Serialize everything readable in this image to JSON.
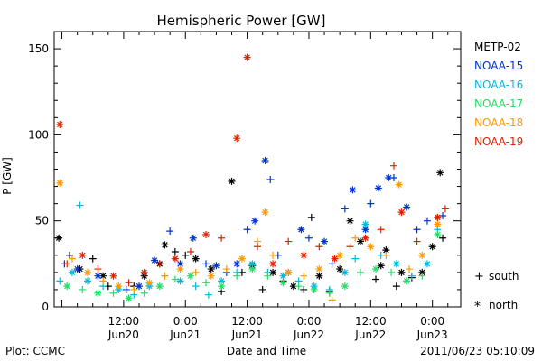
{
  "footer": {
    "plot_credit": "Plot: CCMC",
    "timestamp": "2011/06/23 05:10:09"
  },
  "legend_markers": {
    "south_symbol": "+",
    "south_label": "south",
    "north_symbol": "*",
    "north_label": "north"
  },
  "chart_data": {
    "type": "scatter",
    "title": "Hemispheric Power [GW]",
    "xlabel": "Date and Time",
    "ylabel": "P [GW]",
    "ylim": [
      0,
      160
    ],
    "xlim_hours": [
      0,
      59.5
    ],
    "y_ticks": [
      0,
      50,
      100,
      150
    ],
    "x_ticks": [
      {
        "h": 12,
        "label1": "12:00",
        "label2": "Jun20"
      },
      {
        "h": 24,
        "label1": "0:00",
        "label2": "Jun21"
      },
      {
        "h": 36,
        "label1": "12:00",
        "label2": "Jun21"
      },
      {
        "h": 48,
        "label1": "0:00",
        "label2": "Jun22"
      },
      {
        "h": 60,
        "label1": "12:00",
        "label2": "Jun22"
      },
      {
        "h": 72,
        "label1": "0:00",
        "label2": "Jun23"
      }
    ],
    "grid": false,
    "legend_position": "right",
    "series": [
      {
        "name": "METP-02",
        "color": "#000000",
        "points": [
          [
            -0.6,
            40,
            "n"
          ],
          [
            1.5,
            30,
            "s"
          ],
          [
            3.5,
            22,
            "n"
          ],
          [
            6,
            28,
            "s"
          ],
          [
            8,
            18,
            "n"
          ],
          [
            9,
            12,
            "s"
          ],
          [
            14,
            12,
            "s"
          ],
          [
            16,
            18,
            "n"
          ],
          [
            19,
            25,
            "n"
          ],
          [
            20,
            36,
            "n"
          ],
          [
            22,
            32,
            "s"
          ],
          [
            24,
            30,
            "s"
          ],
          [
            26,
            28,
            "n"
          ],
          [
            29,
            22,
            "n"
          ],
          [
            31,
            9,
            "s"
          ],
          [
            33,
            73,
            "n"
          ],
          [
            35,
            20,
            "s"
          ],
          [
            37,
            24,
            "n"
          ],
          [
            39,
            10,
            "s"
          ],
          [
            41,
            20,
            "n"
          ],
          [
            43,
            15,
            "s"
          ],
          [
            45,
            12,
            "n"
          ],
          [
            47,
            10,
            "s"
          ],
          [
            48.5,
            52,
            "s"
          ],
          [
            50,
            18,
            "n"
          ],
          [
            52,
            9,
            "s"
          ],
          [
            54,
            22,
            "n"
          ],
          [
            56,
            50,
            "n"
          ],
          [
            58,
            38,
            "n"
          ],
          [
            61,
            16,
            "s"
          ],
          [
            62,
            24,
            "n"
          ],
          [
            63,
            33,
            "n"
          ],
          [
            65,
            12,
            "s"
          ],
          [
            66,
            20,
            "n"
          ],
          [
            68,
            17,
            "s"
          ],
          [
            70,
            20,
            "n"
          ],
          [
            72,
            35,
            "n"
          ],
          [
            73.5,
            78,
            "n"
          ],
          [
            74,
            40,
            "s"
          ]
        ]
      },
      {
        "name": "NOAA-15",
        "color": "#0033cc",
        "points": [
          [
            0.5,
            25,
            "s"
          ],
          [
            3,
            22,
            "n"
          ],
          [
            7,
            18,
            "n"
          ],
          [
            12.5,
            10,
            "s"
          ],
          [
            15,
            12,
            "n"
          ],
          [
            18,
            27,
            "n"
          ],
          [
            21,
            44,
            "s"
          ],
          [
            23,
            25,
            "n"
          ],
          [
            25.5,
            40,
            "n"
          ],
          [
            28,
            25,
            "s"
          ],
          [
            30,
            24,
            "n"
          ],
          [
            32,
            20,
            "s"
          ],
          [
            34,
            25,
            "n"
          ],
          [
            36,
            45,
            "s"
          ],
          [
            37.5,
            50,
            "n"
          ],
          [
            39.5,
            85,
            "n"
          ],
          [
            40.5,
            74,
            "s"
          ],
          [
            42,
            30,
            "s"
          ],
          [
            44,
            20,
            "n"
          ],
          [
            46.5,
            45,
            "n"
          ],
          [
            48,
            40,
            "s"
          ],
          [
            51,
            38,
            "n"
          ],
          [
            52.5,
            25,
            "s"
          ],
          [
            55,
            57,
            "s"
          ],
          [
            56.5,
            68,
            "n"
          ],
          [
            59,
            45,
            "n"
          ],
          [
            60,
            60,
            "s"
          ],
          [
            61.5,
            69,
            "n"
          ],
          [
            63.5,
            75,
            "n"
          ],
          [
            64.5,
            75,
            "s"
          ],
          [
            67,
            58,
            "n"
          ],
          [
            69,
            45,
            "s"
          ],
          [
            71,
            50,
            "s"
          ],
          [
            73,
            52,
            "n"
          ],
          [
            74,
            53,
            "s"
          ]
        ]
      },
      {
        "name": "NOAA-16",
        "color": "#00bbdd",
        "points": [
          [
            -0.4,
            15,
            "s"
          ],
          [
            2,
            20,
            "n"
          ],
          [
            3.5,
            59,
            "s"
          ],
          [
            5,
            15,
            "n"
          ],
          [
            8,
            12,
            "s"
          ],
          [
            11,
            10,
            "n"
          ],
          [
            14,
            7,
            "s"
          ],
          [
            17,
            12,
            "n"
          ],
          [
            20,
            18,
            "s"
          ],
          [
            23,
            15,
            "n"
          ],
          [
            26,
            12,
            "s"
          ],
          [
            28.5,
            7,
            "s"
          ],
          [
            31,
            15,
            "n"
          ],
          [
            34,
            20,
            "s"
          ],
          [
            37,
            25,
            "n"
          ],
          [
            40,
            20,
            "s"
          ],
          [
            43,
            18,
            "n"
          ],
          [
            46,
            15,
            "s"
          ],
          [
            49,
            12,
            "n"
          ],
          [
            52,
            10,
            "s"
          ],
          [
            55,
            20,
            "n"
          ],
          [
            57,
            28,
            "s"
          ],
          [
            59,
            48,
            "n"
          ],
          [
            62,
            30,
            "s"
          ],
          [
            65,
            25,
            "n"
          ],
          [
            68,
            18,
            "s"
          ],
          [
            71,
            25,
            "n"
          ],
          [
            73,
            45,
            "s"
          ]
        ]
      },
      {
        "name": "NOAA-17",
        "color": "#22dd66",
        "points": [
          [
            1,
            12,
            "n"
          ],
          [
            4,
            10,
            "s"
          ],
          [
            7,
            8,
            "n"
          ],
          [
            10,
            8,
            "s"
          ],
          [
            13,
            5,
            "n"
          ],
          [
            16,
            8,
            "s"
          ],
          [
            19,
            12,
            "n"
          ],
          [
            22,
            16,
            "s"
          ],
          [
            25,
            18,
            "n"
          ],
          [
            28,
            14,
            "s"
          ],
          [
            31,
            12,
            "n"
          ],
          [
            34,
            18,
            "s"
          ],
          [
            37,
            22,
            "n"
          ],
          [
            40,
            18,
            "s"
          ],
          [
            43,
            14,
            "n"
          ],
          [
            46,
            12,
            "s"
          ],
          [
            49,
            10,
            "n"
          ],
          [
            52,
            8,
            "s"
          ],
          [
            55,
            12,
            "n"
          ],
          [
            58,
            20,
            "s"
          ],
          [
            61,
            22,
            "n"
          ],
          [
            64,
            20,
            "s"
          ],
          [
            67,
            15,
            "n"
          ],
          [
            70,
            18,
            "s"
          ],
          [
            73,
            42,
            "n"
          ]
        ]
      },
      {
        "name": "NOAA-18",
        "color": "#ff9900",
        "points": [
          [
            -0.4,
            72,
            "n"
          ],
          [
            2,
            28,
            "s"
          ],
          [
            5,
            20,
            "n"
          ],
          [
            8,
            15,
            "s"
          ],
          [
            11,
            12,
            "n"
          ],
          [
            14,
            10,
            "s"
          ],
          [
            17,
            14,
            "n"
          ],
          [
            20,
            18,
            "s"
          ],
          [
            23,
            22,
            "n"
          ],
          [
            26,
            20,
            "s"
          ],
          [
            29,
            18,
            "n"
          ],
          [
            32,
            22,
            "s"
          ],
          [
            35,
            28,
            "n"
          ],
          [
            38,
            38,
            "s"
          ],
          [
            39.5,
            55,
            "n"
          ],
          [
            41,
            30,
            "s"
          ],
          [
            44,
            20,
            "n"
          ],
          [
            47,
            18,
            "s"
          ],
          [
            50,
            22,
            "n"
          ],
          [
            52.5,
            4,
            "s"
          ],
          [
            54,
            30,
            "n"
          ],
          [
            57,
            40,
            "s"
          ],
          [
            60,
            35,
            "n"
          ],
          [
            63,
            30,
            "s"
          ],
          [
            65.5,
            71,
            "n"
          ],
          [
            67.5,
            22,
            "s"
          ],
          [
            70,
            30,
            "n"
          ],
          [
            73,
            48,
            "n"
          ]
        ]
      },
      {
        "name": "NOAA-19",
        "color": "#dd2200",
        "points": [
          [
            -0.4,
            106,
            "n"
          ],
          [
            1,
            25,
            "s"
          ],
          [
            4,
            30,
            "n"
          ],
          [
            7,
            22,
            "s"
          ],
          [
            10,
            18,
            "n"
          ],
          [
            13,
            14,
            "s"
          ],
          [
            16,
            20,
            "n"
          ],
          [
            19,
            25,
            "s"
          ],
          [
            22,
            28,
            "n"
          ],
          [
            25,
            32,
            "s"
          ],
          [
            28,
            42,
            "n"
          ],
          [
            31,
            40,
            "s"
          ],
          [
            34,
            98,
            "n"
          ],
          [
            36,
            145,
            "n"
          ],
          [
            38,
            35,
            "s"
          ],
          [
            41,
            25,
            "n"
          ],
          [
            44,
            38,
            "s"
          ],
          [
            47,
            30,
            "n"
          ],
          [
            50,
            35,
            "s"
          ],
          [
            53,
            28,
            "n"
          ],
          [
            56,
            35,
            "s"
          ],
          [
            59,
            40,
            "n"
          ],
          [
            62,
            45,
            "s"
          ],
          [
            64.5,
            82,
            "s"
          ],
          [
            66,
            55,
            "n"
          ],
          [
            69,
            38,
            "s"
          ],
          [
            73,
            52,
            "n"
          ],
          [
            74.5,
            57,
            "s"
          ]
        ]
      }
    ]
  }
}
